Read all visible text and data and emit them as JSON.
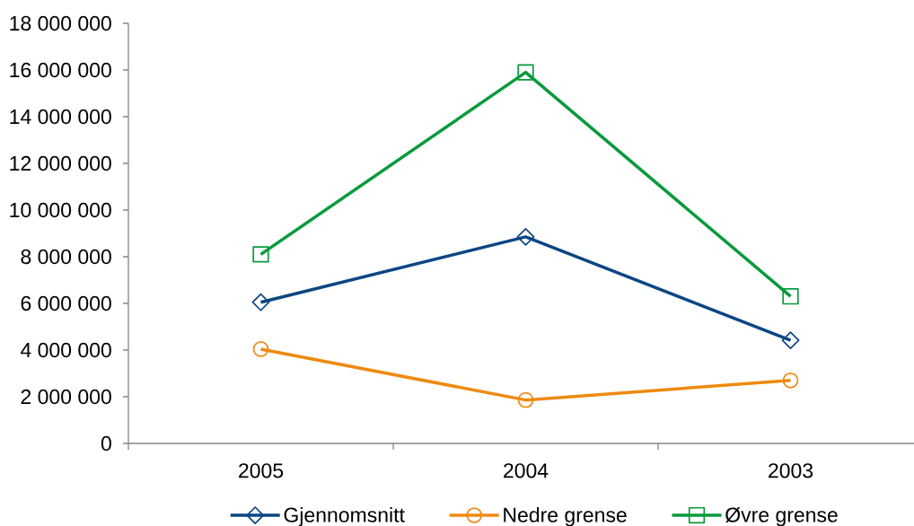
{
  "chart_data": {
    "type": "line",
    "categories": [
      "2005",
      "2004",
      "2003"
    ],
    "series": [
      {
        "name": "Gjennomsnitt",
        "color": "#0B4682",
        "marker": "diamond",
        "values": [
          6050000,
          8850000,
          4420000
        ]
      },
      {
        "name": "Nedre grense",
        "color": "#EE8A10",
        "marker": "circle",
        "values": [
          4040000,
          1860000,
          2700000
        ]
      },
      {
        "name": "Øvre grense",
        "color": "#0A9A3C",
        "marker": "square",
        "values": [
          8100000,
          15900000,
          6300000
        ]
      }
    ],
    "ylim": [
      0,
      18000000
    ],
    "yticks": [
      0,
      {
        "value": 2000000,
        "label": "2 000 000"
      },
      {
        "value": 4000000,
        "label": "4 000 000"
      },
      {
        "value": 6000000,
        "label": "6 000 000"
      },
      {
        "value": 8000000,
        "label": "8 000 000"
      },
      {
        "value": 10000000,
        "label": "10 000 000"
      },
      {
        "value": 12000000,
        "label": "12 000 000"
      },
      {
        "value": 14000000,
        "label": "14 000 000"
      },
      {
        "value": 16000000,
        "label": "16 000 000"
      },
      {
        "value": 18000000,
        "label": "18 000 000"
      }
    ],
    "legend": "bottom"
  }
}
